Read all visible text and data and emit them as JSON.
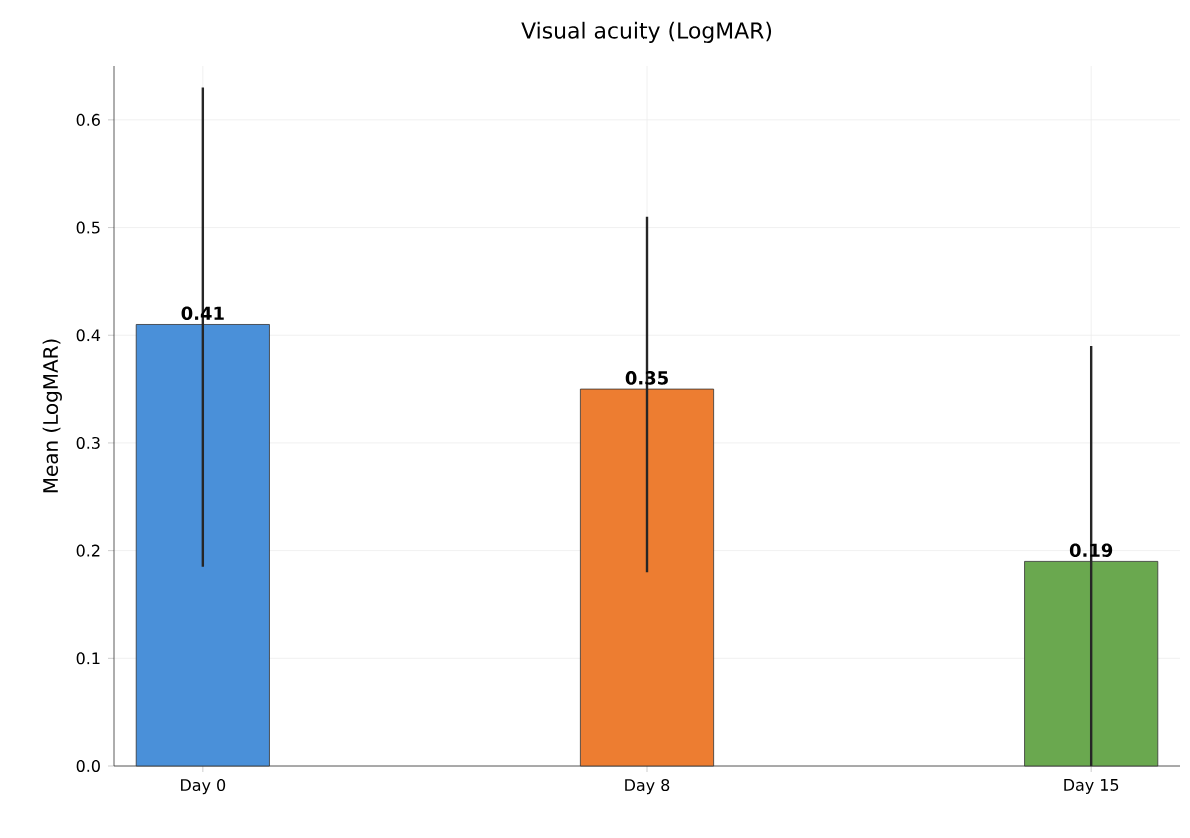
{
  "chart_data": {
    "type": "bar",
    "title": "Visual acuity (LogMAR)",
    "ylabel": "Mean (LogMAR)",
    "categories": [
      "Day 0",
      "Day 8",
      "Day 15"
    ],
    "values": [
      0.41,
      0.35,
      0.19
    ],
    "colors": [
      "#4a90d9",
      "#ed7d31",
      "#6aa84f"
    ],
    "errors": [
      [
        0.185,
        0.63
      ],
      [
        0.18,
        0.51
      ],
      [
        0.0,
        0.39
      ]
    ],
    "data_labels": true,
    "ylim": [
      0,
      0.65
    ],
    "yticks": [
      {
        "value": 0,
        "label": "0.0"
      },
      {
        "value": 0.1,
        "label": "0.1"
      },
      {
        "value": 0.2,
        "label": "0.2"
      },
      {
        "value": 0.3,
        "label": "0.3"
      },
      {
        "value": 0.4,
        "label": "0.4"
      },
      {
        "value": 0.5,
        "label": "0.5"
      },
      {
        "value": 0.6,
        "label": "0.6"
      }
    ],
    "grid": true
  }
}
